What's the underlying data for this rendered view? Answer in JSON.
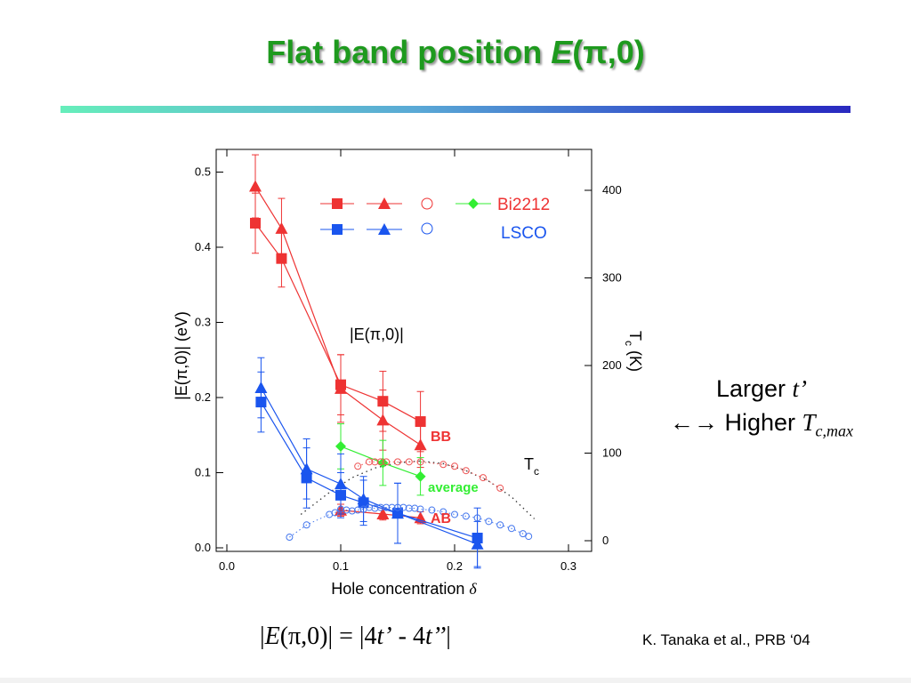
{
  "title": {
    "prefix": "Flat band position ",
    "var": "E",
    "suffix": "(π,0)"
  },
  "side_note": {
    "line1": "Larger ",
    "line1_var": "t’",
    "line2": "←→ Higher ",
    "line2_var": "T",
    "line2_sub": "c,max"
  },
  "formula": {
    "lhs_open": "|",
    "lhs_var": "E",
    "lhs_rest": "(π,0)| = |4",
    "t1": "t’",
    "mid": " - 4",
    "t2": "t’’",
    "close": "|"
  },
  "citation": "K. Tanaka et al., PRB ‘04",
  "chart_data": {
    "type": "scatter",
    "xlabel": "Hole concentration ",
    "xlabel_symbol": "δ",
    "ylabel_left": "|E(π,0)|  (eV)",
    "ylabel_right_main": "T",
    "ylabel_right_sub": "c",
    "ylabel_right_rest": " (K)",
    "xlim": [
      0,
      0.3
    ],
    "ylim_left": [
      0,
      0.5
    ],
    "ylim_right": [
      0,
      400
    ],
    "x_ticks": [
      "0.0",
      "0.1",
      "0.2",
      "0.3"
    ],
    "y_left_ticks": [
      "0.0",
      "0.1",
      "0.2",
      "0.3",
      "0.4",
      "0.5"
    ],
    "y_right_ticks": [
      "0",
      "100",
      "200",
      "300",
      "400"
    ],
    "legend": {
      "bi2212_label": "Bi2212",
      "lsco_label": "LSCO"
    },
    "annotations": {
      "inner_label": "|E(π,0)|",
      "bb": "BB",
      "ab": "AB",
      "average": "average",
      "tc_main": "T",
      "tc_sub": "c"
    },
    "colors": {
      "bi2212": "#ee3333",
      "lsco": "#1a55ee",
      "average": "#33ee33",
      "bi2212_light": "#ee5555",
      "lsco_light": "#4477ee"
    },
    "series": [
      {
        "name": "Bi2212 squares",
        "axis": "left",
        "marker": "square",
        "color": "#ee3333",
        "x": [
          0.025,
          0.048,
          0.1,
          0.137,
          0.17
        ],
        "y": [
          0.432,
          0.385,
          0.217,
          0.195,
          0.168
        ],
        "err": [
          0.04,
          0.038,
          0.04,
          0.04,
          0.04
        ]
      },
      {
        "name": "Bi2212 triangles BB",
        "axis": "left",
        "marker": "triangle",
        "color": "#ee3333",
        "x": [
          0.025,
          0.048,
          0.1,
          0.137,
          0.17
        ],
        "y": [
          0.481,
          0.425,
          0.212,
          0.17,
          0.137
        ],
        "err": [
          0.042,
          0.04,
          0.045,
          0.04,
          0.03
        ]
      },
      {
        "name": "Bi2212 triangles AB",
        "axis": "left",
        "marker": "triangle",
        "color": "#ee3333",
        "x": [
          0.1,
          0.137,
          0.17
        ],
        "y": [
          0.05,
          0.045,
          0.04
        ],
        "err": [
          0.008,
          0.008,
          0.008
        ]
      },
      {
        "name": "Bi2212 average",
        "axis": "left",
        "marker": "diamond",
        "color": "#33ee33",
        "x": [
          0.1,
          0.137,
          0.17
        ],
        "y": [
          0.135,
          0.113,
          0.095
        ],
        "err": [
          0.03,
          0.03,
          0.025
        ]
      },
      {
        "name": "LSCO squares",
        "axis": "left",
        "marker": "square",
        "color": "#1a55ee",
        "x": [
          0.03,
          0.07,
          0.1,
          0.12,
          0.15,
          0.22
        ],
        "y": [
          0.194,
          0.093,
          0.07,
          0.06,
          0.046,
          0.013
        ],
        "err": [
          0.04,
          0.04,
          0.03,
          0.03,
          0.04,
          0.04
        ]
      },
      {
        "name": "LSCO triangles",
        "axis": "left",
        "marker": "triangle",
        "color": "#1a55ee",
        "x": [
          0.03,
          0.07,
          0.1,
          0.12,
          0.15,
          0.22
        ],
        "y": [
          0.213,
          0.105,
          0.085,
          0.065,
          0.046,
          0.005
        ],
        "err": [
          0.04,
          0.04,
          0.04,
          0.03,
          0.04,
          0.03
        ]
      },
      {
        "name": "Bi2212 Tc",
        "axis": "right",
        "marker": "circle",
        "color": "#ee5555",
        "x": [
          0.115,
          0.125,
          0.13,
          0.135,
          0.14,
          0.15,
          0.16,
          0.17,
          0.19,
          0.2,
          0.21,
          0.225,
          0.24
        ],
        "y": [
          85,
          90,
          90,
          90,
          90,
          90,
          90,
          90,
          87,
          85,
          80,
          72,
          60
        ]
      },
      {
        "name": "LSCO Tc",
        "axis": "right",
        "marker": "circle",
        "color": "#4477ee",
        "x": [
          0.055,
          0.07,
          0.09,
          0.095,
          0.1,
          0.105,
          0.11,
          0.115,
          0.12,
          0.125,
          0.13,
          0.135,
          0.14,
          0.145,
          0.15,
          0.155,
          0.16,
          0.165,
          0.17,
          0.18,
          0.19,
          0.2,
          0.21,
          0.22,
          0.23,
          0.24,
          0.25,
          0.26,
          0.265
        ],
        "y": [
          4,
          18,
          30,
          32,
          36,
          35,
          34,
          35,
          36,
          38,
          37,
          38,
          38,
          38,
          38,
          38,
          37,
          37,
          36,
          35,
          33,
          30,
          28,
          26,
          22,
          18,
          14,
          8,
          5
        ]
      }
    ],
    "tc_guide_curve": {
      "x": [
        0.065,
        0.09,
        0.11,
        0.13,
        0.15,
        0.17,
        0.19,
        0.21,
        0.23,
        0.25,
        0.27
      ],
      "y": [
        30,
        55,
        72,
        83,
        89,
        91,
        88,
        80,
        68,
        50,
        25
      ]
    }
  }
}
